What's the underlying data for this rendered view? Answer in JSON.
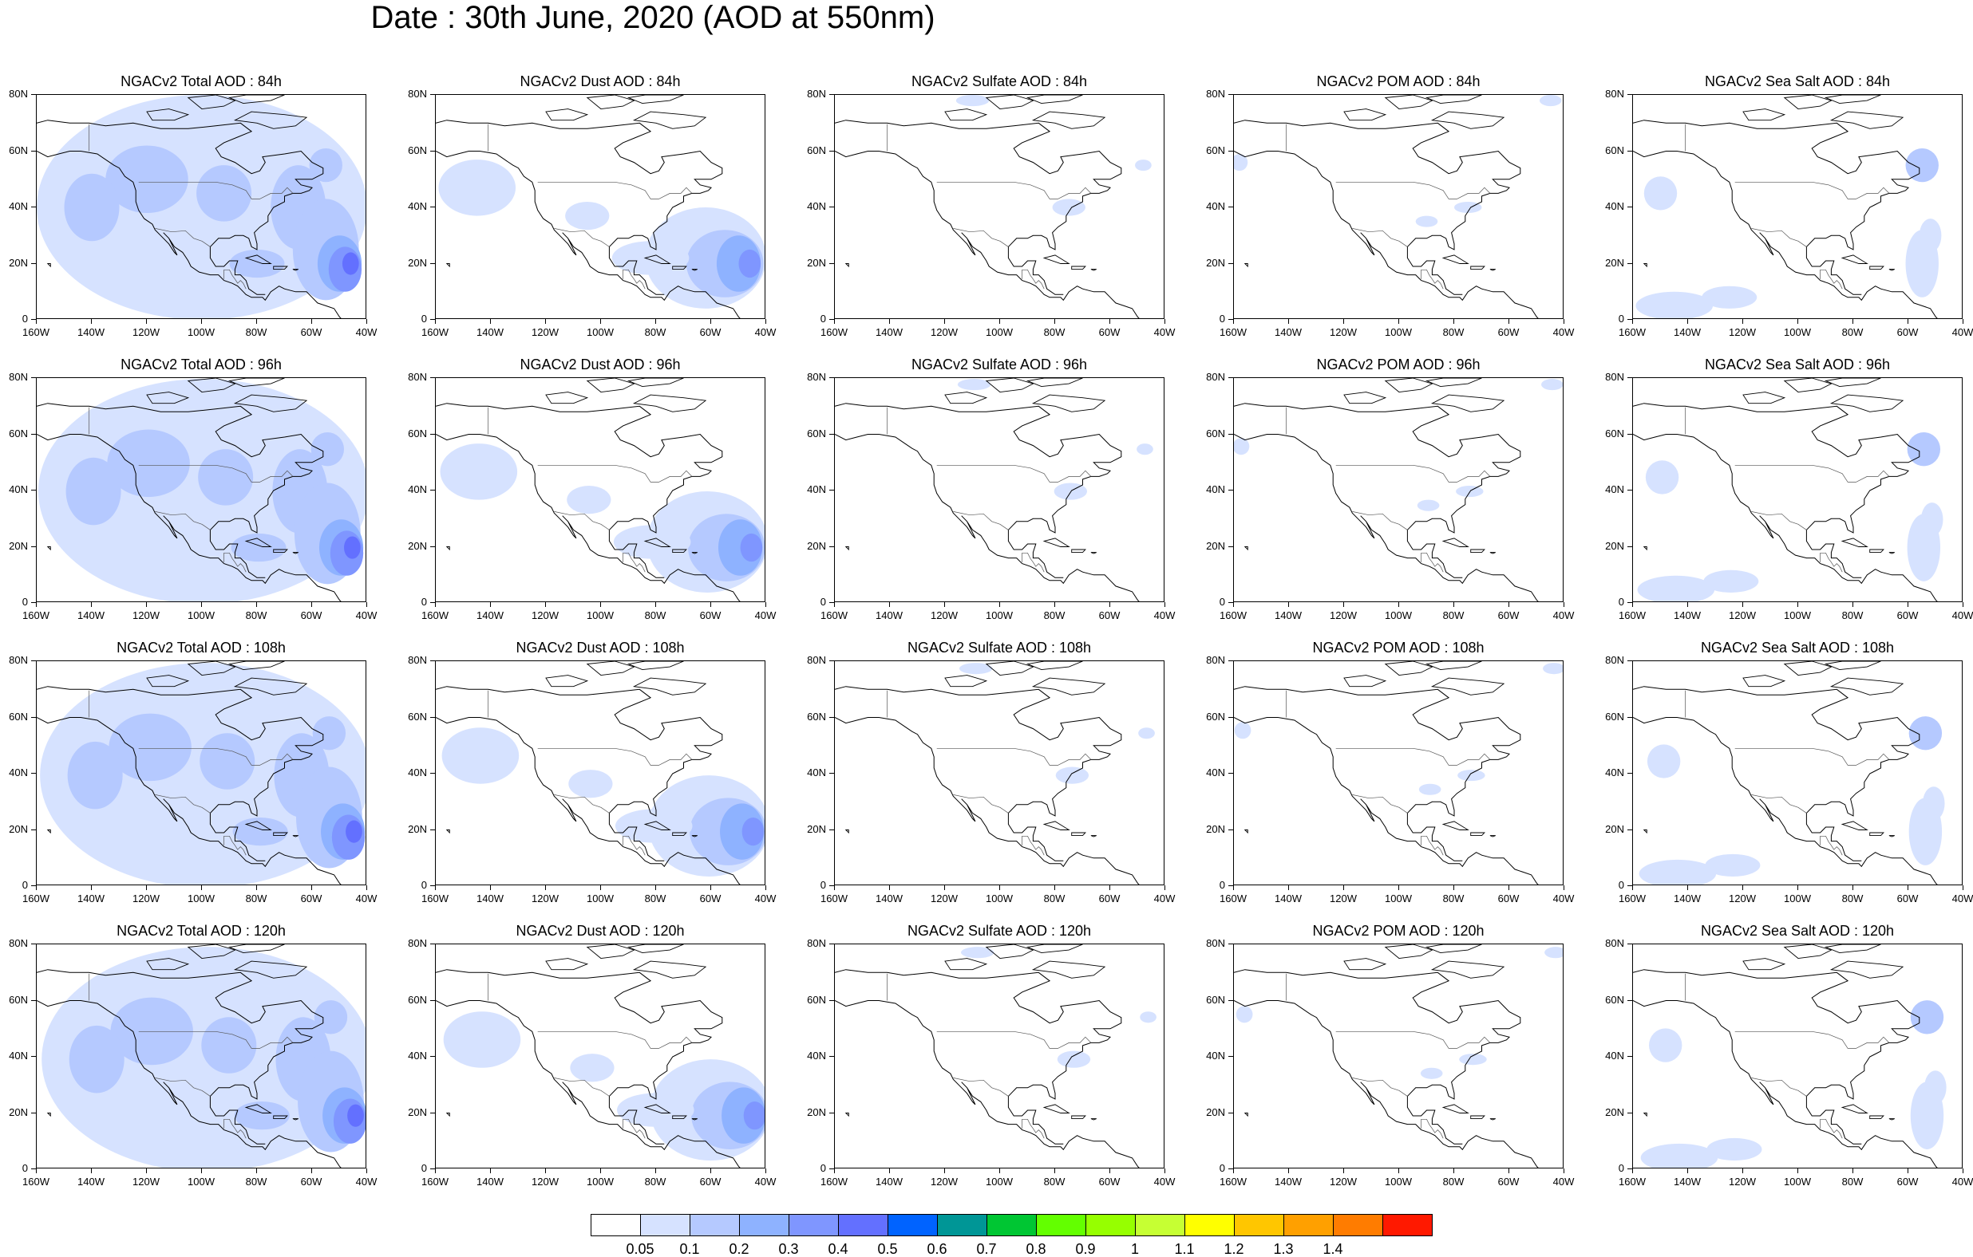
{
  "title": "Date : 30th June, 2020 (AOD at 550nm)",
  "panels": [
    {
      "title": "NGACv2 Total AOD : 84h",
      "variable": "total",
      "lead_hours": 84
    },
    {
      "title": "NGACv2 Dust AOD : 84h",
      "variable": "dust",
      "lead_hours": 84
    },
    {
      "title": "NGACv2 Sulfate AOD : 84h",
      "variable": "sulfate",
      "lead_hours": 84
    },
    {
      "title": "NGACv2 POM AOD : 84h",
      "variable": "pom",
      "lead_hours": 84
    },
    {
      "title": "NGACv2 Sea Salt AOD : 84h",
      "variable": "seasalt",
      "lead_hours": 84
    },
    {
      "title": "NGACv2 Total AOD : 96h",
      "variable": "total",
      "lead_hours": 96
    },
    {
      "title": "NGACv2 Dust AOD : 96h",
      "variable": "dust",
      "lead_hours": 96
    },
    {
      "title": "NGACv2 Sulfate AOD : 96h",
      "variable": "sulfate",
      "lead_hours": 96
    },
    {
      "title": "NGACv2 POM AOD : 96h",
      "variable": "pom",
      "lead_hours": 96
    },
    {
      "title": "NGACv2 Sea Salt AOD : 96h",
      "variable": "seasalt",
      "lead_hours": 96
    },
    {
      "title": "NGACv2 Total AOD : 108h",
      "variable": "total",
      "lead_hours": 108
    },
    {
      "title": "NGACv2 Dust AOD : 108h",
      "variable": "dust",
      "lead_hours": 108
    },
    {
      "title": "NGACv2 Sulfate AOD : 108h",
      "variable": "sulfate",
      "lead_hours": 108
    },
    {
      "title": "NGACv2 POM AOD : 108h",
      "variable": "pom",
      "lead_hours": 108
    },
    {
      "title": "NGACv2 Sea Salt AOD : 108h",
      "variable": "seasalt",
      "lead_hours": 108
    },
    {
      "title": "NGACv2 Total AOD : 120h",
      "variable": "total",
      "lead_hours": 120
    },
    {
      "title": "NGACv2 Dust AOD : 120h",
      "variable": "dust",
      "lead_hours": 120
    },
    {
      "title": "NGACv2 Sulfate AOD : 120h",
      "variable": "sulfate",
      "lead_hours": 120
    },
    {
      "title": "NGACv2 POM AOD : 120h",
      "variable": "pom",
      "lead_hours": 120
    },
    {
      "title": "NGACv2 Sea Salt  AOD : 120h",
      "variable": "seasalt",
      "lead_hours": 120
    }
  ],
  "axes": {
    "lat_ticks": [
      "80N",
      "60N",
      "40N",
      "20N",
      "0"
    ],
    "lon_ticks": [
      "160W",
      "140W",
      "120W",
      "100W",
      "80W",
      "60W",
      "40W"
    ],
    "lat_range": [
      0,
      80
    ],
    "lon_range": [
      -160,
      -40
    ]
  },
  "colorbar": {
    "colors": [
      "#ffffff",
      "#d6e2ff",
      "#b5c9ff",
      "#8eb2ff",
      "#7f96ff",
      "#6370ff",
      "#0063ff",
      "#009696",
      "#00c633",
      "#63ff00",
      "#96ff00",
      "#c6ff33",
      "#ffff00",
      "#ffc600",
      "#ffa000",
      "#ff7c00",
      "#ff1900"
    ],
    "labels": [
      "0.05",
      "0.1",
      "0.2",
      "0.3",
      "0.4",
      "0.5",
      "0.6",
      "0.7",
      "0.8",
      "0.9",
      "1",
      "1.1",
      "1.2",
      "1.3",
      "1.4"
    ]
  }
}
